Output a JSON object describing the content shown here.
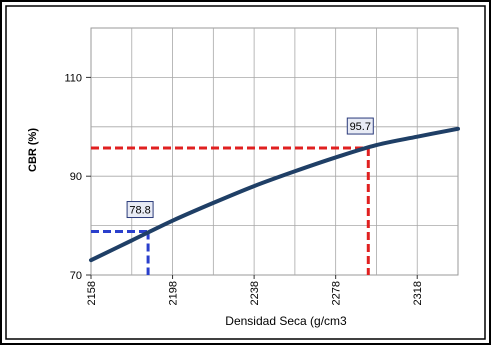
{
  "chart_data": {
    "type": "line",
    "xlabel": "Densidad Seca (g/cm3",
    "ylabel": "CBR  (%)",
    "xlim": [
      2158,
      2338
    ],
    "ylim": [
      70,
      120
    ],
    "x_ticks": [
      "2158",
      "2198",
      "2238",
      "2278",
      "2318"
    ],
    "y_ticks": [
      "70",
      "90",
      "110"
    ],
    "grid": true,
    "series": [
      {
        "color": "#1f3f66",
        "x": [
          2158,
          2178,
          2198,
          2218,
          2238,
          2258,
          2278,
          2298,
          2318,
          2338
        ],
        "y": [
          73.0,
          77.0,
          81.0,
          84.6,
          88.0,
          91.0,
          93.8,
          96.3,
          98.0,
          99.6
        ]
      }
    ],
    "annotations": [
      {
        "label": "78.8",
        "x": 2186,
        "y": 78.8,
        "color": "#2a3fcc"
      },
      {
        "label": "95.7",
        "x": 2294,
        "y": 95.7,
        "color": "#e02020"
      }
    ]
  }
}
